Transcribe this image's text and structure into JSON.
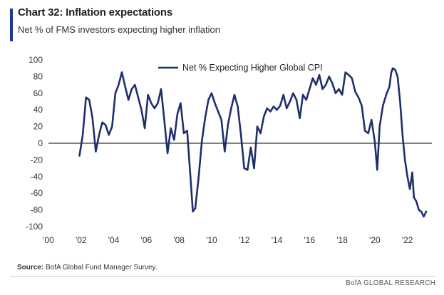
{
  "header": {
    "title": "Chart 32: Inflation expectations",
    "subtitle": "Net % of FMS investors expecting higher inflation"
  },
  "footer": {
    "source_label": "Source:",
    "source_text": "BofA Global Fund Manager Survey.",
    "brand": "BofA GLOBAL RESEARCH"
  },
  "colors": {
    "series": "#1f2f6b",
    "accent": "#1f3a93"
  },
  "chart_data": {
    "type": "line",
    "title": "Chart 32: Inflation expectations",
    "subtitle": "Net % of FMS investors expecting higher inflation",
    "xlabel": "",
    "ylabel": "",
    "xlim": [
      2000,
      2023.5
    ],
    "ylim": [
      -100,
      100
    ],
    "y_ticks": [
      100,
      80,
      60,
      40,
      20,
      0,
      -20,
      -40,
      -60,
      -80,
      -100
    ],
    "x_ticks": [
      2000,
      2002,
      2004,
      2006,
      2008,
      2010,
      2012,
      2014,
      2016,
      2018,
      2020,
      2022
    ],
    "x_tick_labels": [
      "'00",
      "'02",
      "'04",
      "'06",
      "'08",
      "'10",
      "'12",
      "'14",
      "'16",
      "'18",
      "'20",
      "'22"
    ],
    "legend": {
      "position": "top-center"
    },
    "series": [
      {
        "name": "Net % Expecting Higher Global CPI",
        "x": [
          2001.9,
          2002.1,
          2002.3,
          2002.5,
          2002.7,
          2002.9,
          2003.1,
          2003.3,
          2003.5,
          2003.7,
          2003.9,
          2004.1,
          2004.3,
          2004.5,
          2004.7,
          2004.9,
          2005.1,
          2005.3,
          2005.5,
          2005.7,
          2005.9,
          2006.1,
          2006.3,
          2006.5,
          2006.7,
          2006.9,
          2007.1,
          2007.3,
          2007.5,
          2007.7,
          2007.9,
          2008.1,
          2008.3,
          2008.5,
          2008.7,
          2008.85,
          2009.0,
          2009.2,
          2009.4,
          2009.6,
          2009.8,
          2010.0,
          2010.2,
          2010.4,
          2010.6,
          2010.8,
          2011.0,
          2011.2,
          2011.4,
          2011.6,
          2011.8,
          2012.0,
          2012.2,
          2012.4,
          2012.6,
          2012.8,
          2013.0,
          2013.2,
          2013.4,
          2013.6,
          2013.8,
          2014.0,
          2014.2,
          2014.4,
          2014.6,
          2014.8,
          2015.0,
          2015.2,
          2015.4,
          2015.6,
          2015.8,
          2016.0,
          2016.2,
          2016.4,
          2016.6,
          2016.8,
          2017.0,
          2017.2,
          2017.4,
          2017.6,
          2017.8,
          2018.0,
          2018.2,
          2018.4,
          2018.6,
          2018.8,
          2019.0,
          2019.2,
          2019.4,
          2019.6,
          2019.8,
          2020.0,
          2020.15,
          2020.3,
          2020.5,
          2020.7,
          2020.9,
          2021.0,
          2021.1,
          2021.25,
          2021.4,
          2021.55,
          2021.7,
          2021.85,
          2022.0,
          2022.15,
          2022.3,
          2022.4,
          2022.55,
          2022.7,
          2022.85,
          2023.0,
          2023.15
        ],
        "values": [
          -15,
          10,
          55,
          52,
          30,
          -10,
          10,
          25,
          22,
          10,
          20,
          60,
          70,
          85,
          68,
          52,
          65,
          70,
          55,
          40,
          18,
          58,
          48,
          42,
          48,
          65,
          28,
          -12,
          18,
          4,
          35,
          48,
          12,
          15,
          -40,
          -82,
          -78,
          -42,
          2,
          30,
          52,
          60,
          48,
          38,
          28,
          -10,
          22,
          42,
          58,
          44,
          10,
          -30,
          -32,
          -5,
          -30,
          20,
          12,
          32,
          42,
          38,
          44,
          40,
          45,
          58,
          42,
          50,
          60,
          52,
          30,
          58,
          52,
          65,
          78,
          70,
          82,
          65,
          70,
          80,
          72,
          60,
          65,
          58,
          85,
          82,
          78,
          62,
          55,
          45,
          15,
          12,
          28,
          2,
          -32,
          20,
          45,
          58,
          68,
          84,
          90,
          88,
          80,
          50,
          10,
          -20,
          -40,
          -55,
          -35,
          -65,
          -70,
          -80,
          -82,
          -88,
          -82
        ]
      }
    ]
  }
}
